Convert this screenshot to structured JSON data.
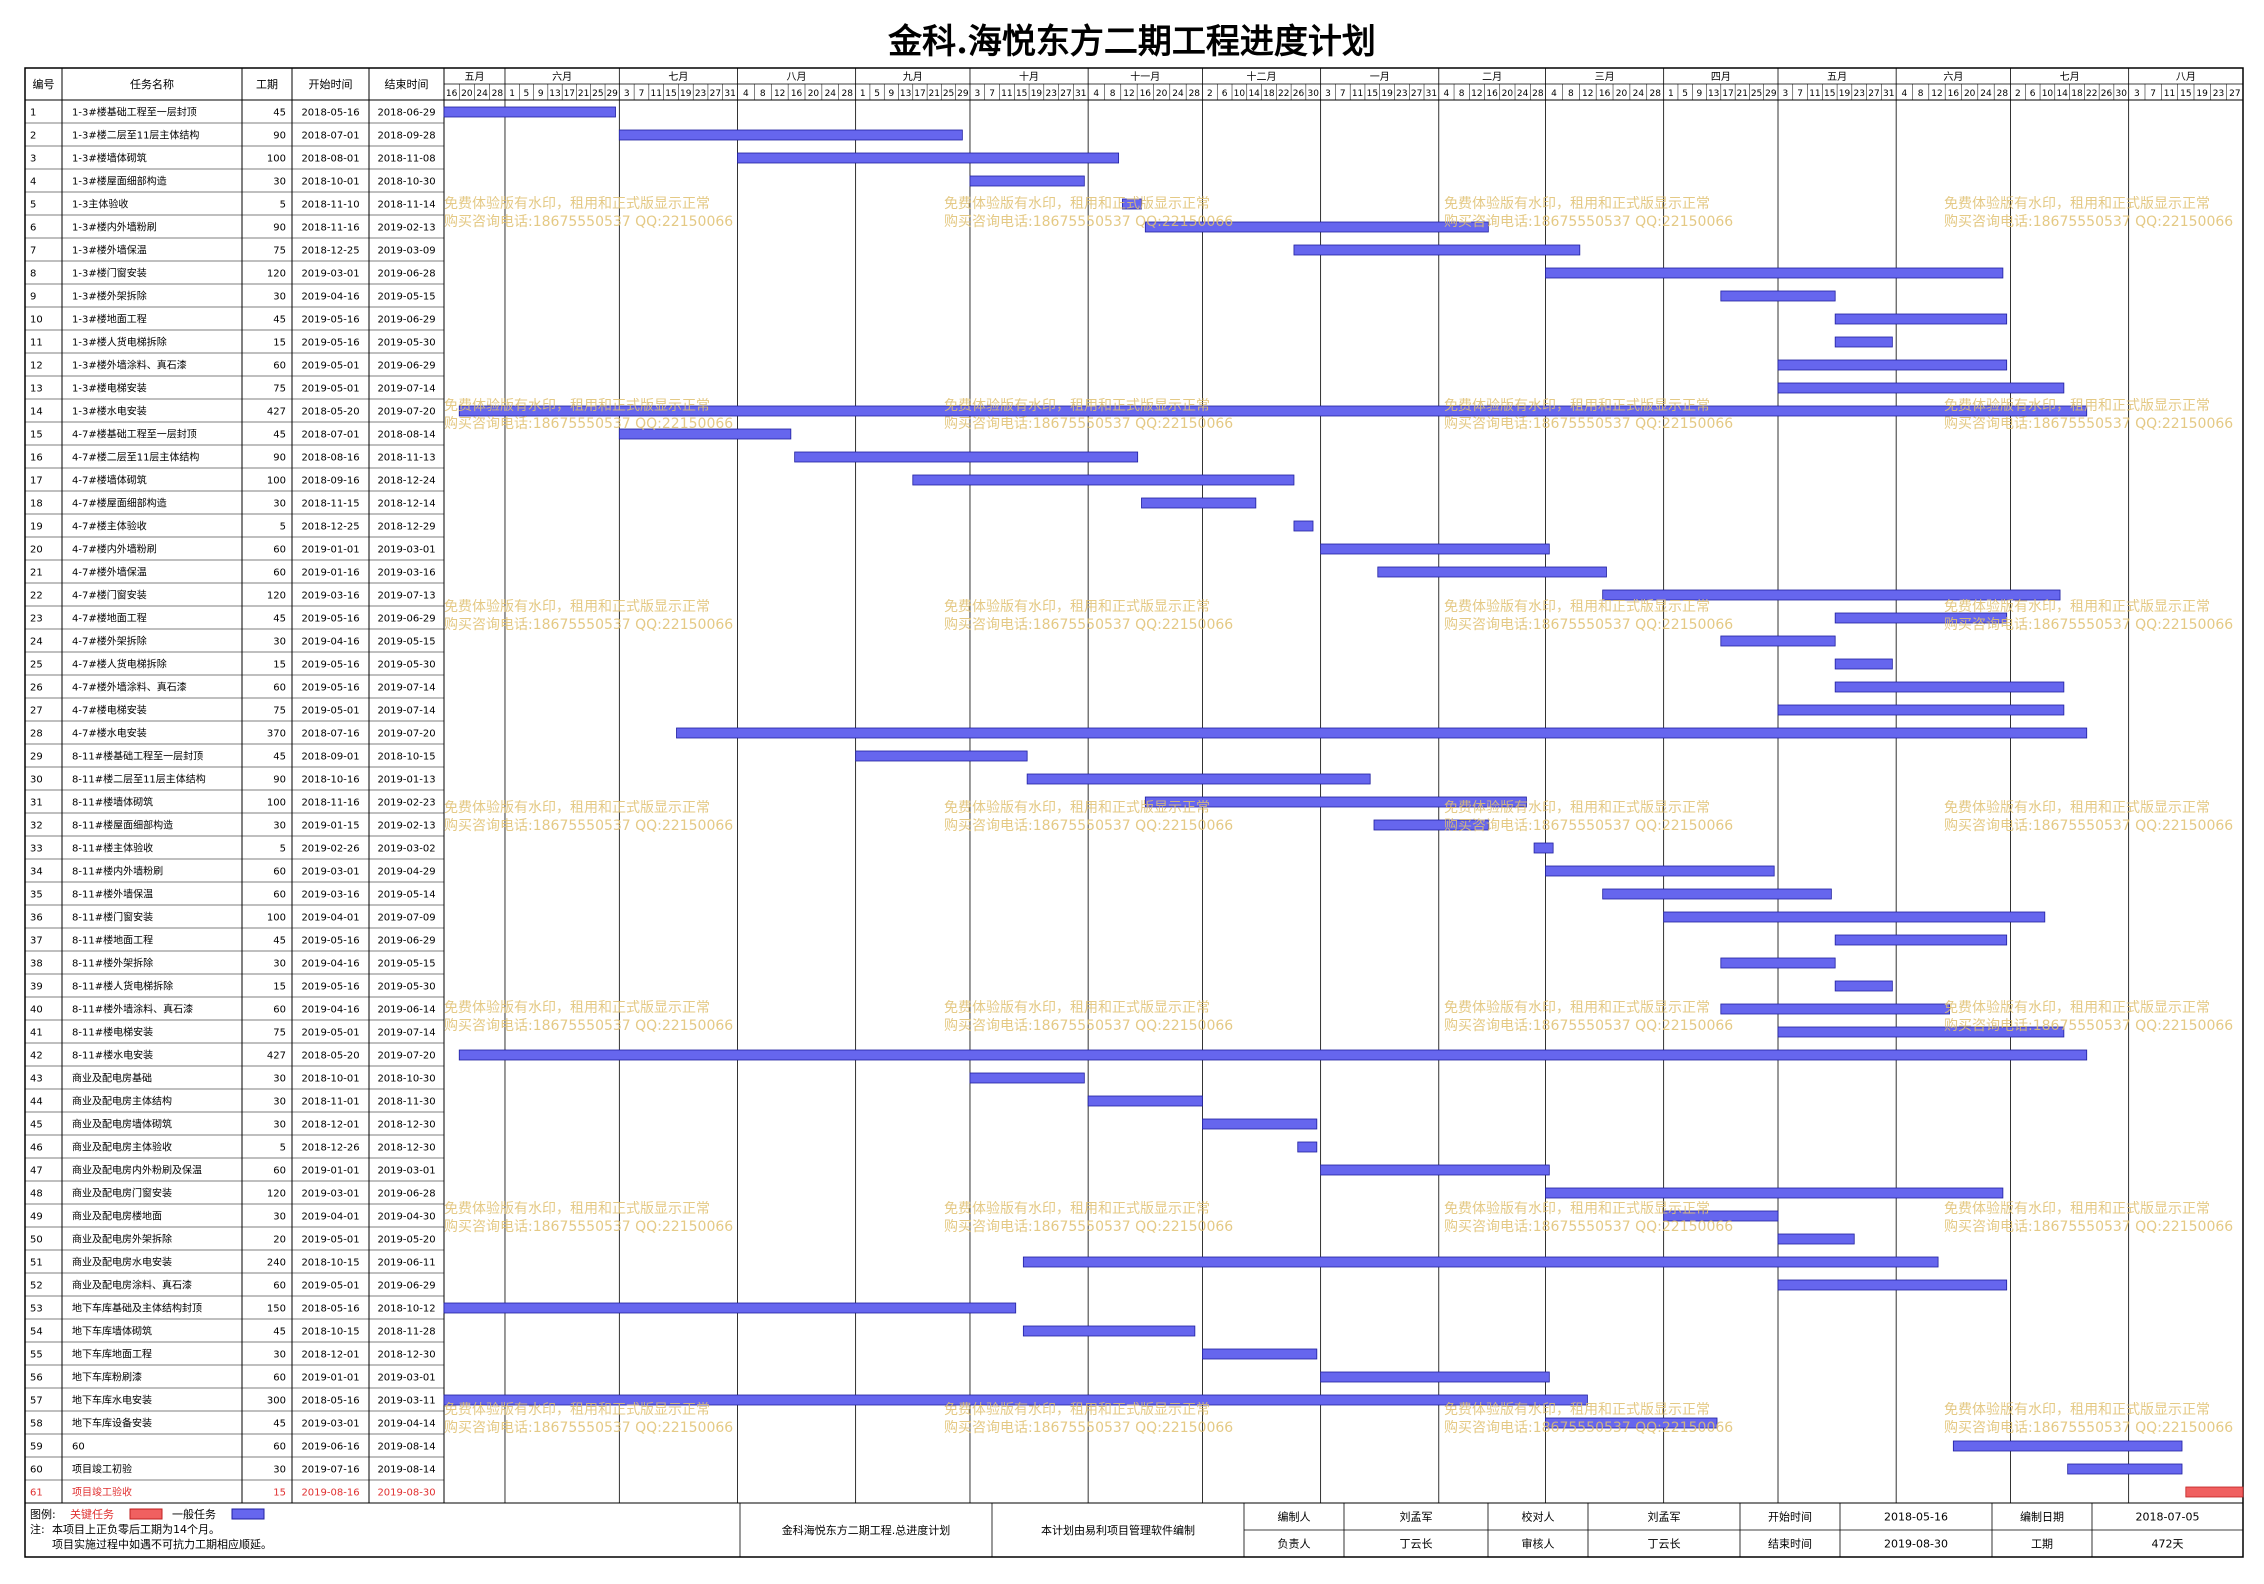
{
  "title": "金科.海悦东方二期工程进度计划",
  "table_headers": [
    "编号",
    "任务名称",
    "工期",
    "开始时间",
    "结束时间"
  ],
  "months": [
    {
      "label": "五月",
      "ticks": [
        "16",
        "20",
        "24",
        "28"
      ]
    },
    {
      "label": "六月",
      "ticks": [
        "1",
        "5",
        "9",
        "13",
        "17",
        "21",
        "25",
        "29"
      ]
    },
    {
      "label": "七月",
      "ticks": [
        "3",
        "7",
        "11",
        "15",
        "19",
        "23",
        "27",
        "31"
      ]
    },
    {
      "label": "八月",
      "ticks": [
        "4",
        "8",
        "12",
        "16",
        "20",
        "24",
        "28"
      ]
    },
    {
      "label": "九月",
      "ticks": [
        "1",
        "5",
        "9",
        "13",
        "17",
        "21",
        "25",
        "29"
      ]
    },
    {
      "label": "十月",
      "ticks": [
        "3",
        "7",
        "11",
        "15",
        "19",
        "23",
        "27",
        "31"
      ]
    },
    {
      "label": "十一月",
      "ticks": [
        "4",
        "8",
        "12",
        "16",
        "20",
        "24",
        "28"
      ]
    },
    {
      "label": "十二月",
      "ticks": [
        "2",
        "6",
        "10",
        "14",
        "18",
        "22",
        "26",
        "30"
      ]
    },
    {
      "label": "一月",
      "ticks": [
        "3",
        "7",
        "11",
        "15",
        "19",
        "23",
        "27",
        "31"
      ]
    },
    {
      "label": "二月",
      "ticks": [
        "4",
        "8",
        "12",
        "16",
        "20",
        "24",
        "28"
      ]
    },
    {
      "label": "三月",
      "ticks": [
        "4",
        "8",
        "12",
        "16",
        "20",
        "24",
        "28"
      ]
    },
    {
      "label": "四月",
      "ticks": [
        "1",
        "5",
        "9",
        "13",
        "17",
        "21",
        "25",
        "29"
      ]
    },
    {
      "label": "五月",
      "ticks": [
        "3",
        "7",
        "11",
        "15",
        "19",
        "23",
        "27",
        "31"
      ]
    },
    {
      "label": "六月",
      "ticks": [
        "4",
        "8",
        "12",
        "16",
        "20",
        "24",
        "28"
      ]
    },
    {
      "label": "七月",
      "ticks": [
        "2",
        "6",
        "10",
        "14",
        "18",
        "22",
        "26",
        "30"
      ]
    },
    {
      "label": "八月",
      "ticks": [
        "3",
        "7",
        "11",
        "15",
        "19",
        "23",
        "27"
      ]
    }
  ],
  "chart_data": {
    "type": "gantt",
    "title": "金科.海悦东方二期工程进度计划",
    "x_range": [
      "2018-05-16",
      "2019-08-30"
    ],
    "tasks": [
      {
        "id": "1",
        "name": "1-3#楼基础工程至一层封顶",
        "duration": 45,
        "start": "2018-05-16",
        "end": "2018-06-29",
        "critical": false
      },
      {
        "id": "2",
        "name": "1-3#楼二层至11层主体结构",
        "duration": 90,
        "start": "2018-07-01",
        "end": "2018-09-28",
        "critical": false
      },
      {
        "id": "3",
        "name": "1-3#楼墙体砌筑",
        "duration": 100,
        "start": "2018-08-01",
        "end": "2018-11-08",
        "critical": false
      },
      {
        "id": "4",
        "name": "1-3#楼屋面细部构造",
        "duration": 30,
        "start": "2018-10-01",
        "end": "2018-10-30",
        "critical": false
      },
      {
        "id": "5",
        "name": "1-3主体验收",
        "duration": 5,
        "start": "2018-11-10",
        "end": "2018-11-14",
        "critical": false
      },
      {
        "id": "6",
        "name": "1-3#楼内外墙粉刷",
        "duration": 90,
        "start": "2018-11-16",
        "end": "2019-02-13",
        "critical": false
      },
      {
        "id": "7",
        "name": "1-3#楼外墙保温",
        "duration": 75,
        "start": "2018-12-25",
        "end": "2019-03-09",
        "critical": false
      },
      {
        "id": "8",
        "name": "1-3#楼门窗安装",
        "duration": 120,
        "start": "2019-03-01",
        "end": "2019-06-28",
        "critical": false
      },
      {
        "id": "9",
        "name": "1-3#楼外架拆除",
        "duration": 30,
        "start": "2019-04-16",
        "end": "2019-05-15",
        "critical": false
      },
      {
        "id": "10",
        "name": "1-3#楼地面工程",
        "duration": 45,
        "start": "2019-05-16",
        "end": "2019-06-29",
        "critical": false
      },
      {
        "id": "11",
        "name": "1-3#楼人货电梯拆除",
        "duration": 15,
        "start": "2019-05-16",
        "end": "2019-05-30",
        "critical": false
      },
      {
        "id": "12",
        "name": "1-3#楼外墙涂料、真石漆",
        "duration": 60,
        "start": "2019-05-01",
        "end": "2019-06-29",
        "critical": false
      },
      {
        "id": "13",
        "name": "1-3#楼电梯安装",
        "duration": 75,
        "start": "2019-05-01",
        "end": "2019-07-14",
        "critical": false
      },
      {
        "id": "14",
        "name": "1-3#楼水电安装",
        "duration": 427,
        "start": "2018-05-20",
        "end": "2019-07-20",
        "critical": false
      },
      {
        "id": "15",
        "name": "4-7#楼基础工程至一层封顶",
        "duration": 45,
        "start": "2018-07-01",
        "end": "2018-08-14",
        "critical": false
      },
      {
        "id": "16",
        "name": "4-7#楼二层至11层主体结构",
        "duration": 90,
        "start": "2018-08-16",
        "end": "2018-11-13",
        "critical": false
      },
      {
        "id": "17",
        "name": "4-7#楼墙体砌筑",
        "duration": 100,
        "start": "2018-09-16",
        "end": "2018-12-24",
        "critical": false
      },
      {
        "id": "18",
        "name": "4-7#楼屋面细部构造",
        "duration": 30,
        "start": "2018-11-15",
        "end": "2018-12-14",
        "critical": false
      },
      {
        "id": "19",
        "name": "4-7#楼主体验收",
        "duration": 5,
        "start": "2018-12-25",
        "end": "2018-12-29",
        "critical": false
      },
      {
        "id": "20",
        "name": "4-7#楼内外墙粉刷",
        "duration": 60,
        "start": "2019-01-01",
        "end": "2019-03-01",
        "critical": false
      },
      {
        "id": "21",
        "name": "4-7#楼外墙保温",
        "duration": 60,
        "start": "2019-01-16",
        "end": "2019-03-16",
        "critical": false
      },
      {
        "id": "22",
        "name": "4-7#楼门窗安装",
        "duration": 120,
        "start": "2019-03-16",
        "end": "2019-07-13",
        "critical": false
      },
      {
        "id": "23",
        "name": "4-7#楼地面工程",
        "duration": 45,
        "start": "2019-05-16",
        "end": "2019-06-29",
        "critical": false
      },
      {
        "id": "24",
        "name": "4-7#楼外架拆除",
        "duration": 30,
        "start": "2019-04-16",
        "end": "2019-05-15",
        "critical": false
      },
      {
        "id": "25",
        "name": "4-7#楼人货电梯拆除",
        "duration": 15,
        "start": "2019-05-16",
        "end": "2019-05-30",
        "critical": false
      },
      {
        "id": "26",
        "name": "4-7#楼外墙涂料、真石漆",
        "duration": 60,
        "start": "2019-05-16",
        "end": "2019-07-14",
        "critical": false
      },
      {
        "id": "27",
        "name": "4-7#楼电梯安装",
        "duration": 75,
        "start": "2019-05-01",
        "end": "2019-07-14",
        "critical": false
      },
      {
        "id": "28",
        "name": "4-7#楼水电安装",
        "duration": 370,
        "start": "2018-07-16",
        "end": "2019-07-20",
        "critical": false
      },
      {
        "id": "29",
        "name": "8-11#楼基础工程至一层封顶",
        "duration": 45,
        "start": "2018-09-01",
        "end": "2018-10-15",
        "critical": false
      },
      {
        "id": "30",
        "name": "8-11#楼二层至11层主体结构",
        "duration": 90,
        "start": "2018-10-16",
        "end": "2019-01-13",
        "critical": false
      },
      {
        "id": "31",
        "name": "8-11#楼墙体砌筑",
        "duration": 100,
        "start": "2018-11-16",
        "end": "2019-02-23",
        "critical": false
      },
      {
        "id": "32",
        "name": "8-11#楼屋面细部构造",
        "duration": 30,
        "start": "2019-01-15",
        "end": "2019-02-13",
        "critical": false
      },
      {
        "id": "33",
        "name": "8-11#楼主体验收",
        "duration": 5,
        "start": "2019-02-26",
        "end": "2019-03-02",
        "critical": false
      },
      {
        "id": "34",
        "name": "8-11#楼内外墙粉刷",
        "duration": 60,
        "start": "2019-03-01",
        "end": "2019-04-29",
        "critical": false
      },
      {
        "id": "35",
        "name": "8-11#楼外墙保温",
        "duration": 60,
        "start": "2019-03-16",
        "end": "2019-05-14",
        "critical": false
      },
      {
        "id": "36",
        "name": "8-11#楼门窗安装",
        "duration": 100,
        "start": "2019-04-01",
        "end": "2019-07-09",
        "critical": false
      },
      {
        "id": "37",
        "name": "8-11#楼地面工程",
        "duration": 45,
        "start": "2019-05-16",
        "end": "2019-06-29",
        "critical": false
      },
      {
        "id": "38",
        "name": "8-11#楼外架拆除",
        "duration": 30,
        "start": "2019-04-16",
        "end": "2019-05-15",
        "critical": false
      },
      {
        "id": "39",
        "name": "8-11#楼人货电梯拆除",
        "duration": 15,
        "start": "2019-05-16",
        "end": "2019-05-30",
        "critical": false
      },
      {
        "id": "40",
        "name": "8-11#楼外墙涂料、真石漆",
        "duration": 60,
        "start": "2019-04-16",
        "end": "2019-06-14",
        "critical": false
      },
      {
        "id": "41",
        "name": "8-11#楼电梯安装",
        "duration": 75,
        "start": "2019-05-01",
        "end": "2019-07-14",
        "critical": false
      },
      {
        "id": "42",
        "name": "8-11#楼水电安装",
        "duration": 427,
        "start": "2018-05-20",
        "end": "2019-07-20",
        "critical": false
      },
      {
        "id": "43",
        "name": "商业及配电房基础",
        "duration": 30,
        "start": "2018-10-01",
        "end": "2018-10-30",
        "critical": false
      },
      {
        "id": "44",
        "name": "商业及配电房主体结构",
        "duration": 30,
        "start": "2018-11-01",
        "end": "2018-11-30",
        "critical": false
      },
      {
        "id": "45",
        "name": "商业及配电房墙体砌筑",
        "duration": 30,
        "start": "2018-12-01",
        "end": "2018-12-30",
        "critical": false
      },
      {
        "id": "46",
        "name": "商业及配电房主体验收",
        "duration": 5,
        "start": "2018-12-26",
        "end": "2018-12-30",
        "critical": false
      },
      {
        "id": "47",
        "name": "商业及配电房内外粉刷及保温",
        "duration": 60,
        "start": "2019-01-01",
        "end": "2019-03-01",
        "critical": false
      },
      {
        "id": "48",
        "name": "商业及配电房门窗安装",
        "duration": 120,
        "start": "2019-03-01",
        "end": "2019-06-28",
        "critical": false
      },
      {
        "id": "49",
        "name": "商业及配电房楼地面",
        "duration": 30,
        "start": "2019-04-01",
        "end": "2019-04-30",
        "critical": false
      },
      {
        "id": "50",
        "name": "商业及配电房外架拆除",
        "duration": 20,
        "start": "2019-05-01",
        "end": "2019-05-20",
        "critical": false
      },
      {
        "id": "51",
        "name": "商业及配电房水电安装",
        "duration": 240,
        "start": "2018-10-15",
        "end": "2019-06-11",
        "critical": false
      },
      {
        "id": "52",
        "name": "商业及配电房涂料、真石漆",
        "duration": 60,
        "start": "2019-05-01",
        "end": "2019-06-29",
        "critical": false
      },
      {
        "id": "53",
        "name": "地下车库基础及主体结构封顶",
        "duration": 150,
        "start": "2018-05-16",
        "end": "2018-10-12",
        "critical": false
      },
      {
        "id": "54",
        "name": "地下车库墙体砌筑",
        "duration": 45,
        "start": "2018-10-15",
        "end": "2018-11-28",
        "critical": false
      },
      {
        "id": "55",
        "name": "地下车库地面工程",
        "duration": 30,
        "start": "2018-12-01",
        "end": "2018-12-30",
        "critical": false
      },
      {
        "id": "56",
        "name": "地下车库粉刷漆",
        "duration": 60,
        "start": "2019-01-01",
        "end": "2019-03-01",
        "critical": false
      },
      {
        "id": "57",
        "name": "地下车库水电安装",
        "duration": 300,
        "start": "2018-05-16",
        "end": "2019-03-11",
        "critical": false
      },
      {
        "id": "58",
        "name": "地下车库设备安装",
        "duration": 45,
        "start": "2019-03-01",
        "end": "2019-04-14",
        "critical": false
      },
      {
        "id": "59",
        "name": "60",
        "duration": 60,
        "start": "2019-06-16",
        "end": "2019-08-14",
        "critical": false
      },
      {
        "id": "60",
        "name": "项目竣工初验",
        "duration": 30,
        "start": "2019-07-16",
        "end": "2019-08-14",
        "critical": false
      },
      {
        "id": "61",
        "name": "项目竣工验收",
        "duration": 15,
        "start": "2019-08-16",
        "end": "2019-08-30",
        "critical": true
      }
    ],
    "bar_color": "#6666ee",
    "critical_color": "#f06060"
  },
  "watermark": {
    "line1": "免费体验版有水印，租用和正式版显示正常",
    "line2": "购买咨询电话:18675550537 QQ:22150066",
    "color": "#e0c070"
  },
  "legend": {
    "label": "图例:",
    "critical": "关键任务",
    "normal": "一般任务",
    "note_label": "注:",
    "note1": "本项目上正负零后工期为14个月。",
    "note2": "项目实施过程中如遇不可抗力工期相应顺延。"
  },
  "footer": {
    "plan_name": "金科海悦东方二期工程.总进度计划",
    "software": "本计划由易利项目管理软件编制",
    "compiler_label": "编制人",
    "compiler": "刘孟军",
    "checker_label": "校对人",
    "checker": "刘孟军",
    "start_label": "开始时间",
    "start": "2018-05-16",
    "date_label": "编制日期",
    "date": "2018-07-05",
    "owner_label": "负责人",
    "owner": "丁云长",
    "reviewer_label": "审核人",
    "reviewer": "丁云长",
    "end_label": "结束时间",
    "end": "2019-08-30",
    "period_label": "工期",
    "period": "472天"
  }
}
